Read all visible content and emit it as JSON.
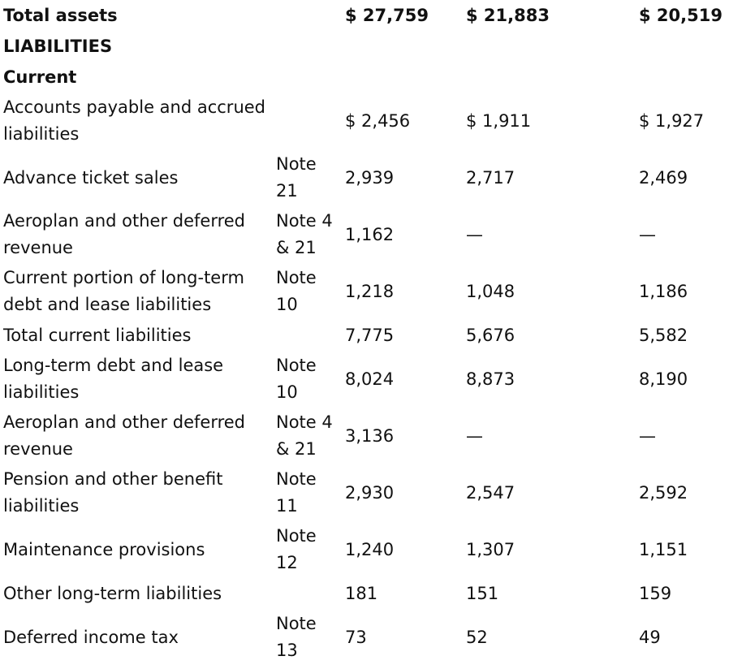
{
  "rows": [
    {
      "label": "Total assets",
      "note": "",
      "v1": "$ 27,759",
      "v2": "$ 21,883",
      "v3": "$ 20,519"
    },
    {
      "label": "LIABILITIES",
      "note": "",
      "v1": "",
      "v2": "",
      "v3": ""
    },
    {
      "label": "Current",
      "note": "",
      "v1": "",
      "v2": "",
      "v3": ""
    },
    {
      "label": "Accounts payable and accrued liabilities",
      "note": "",
      "v1": "$ 2,456",
      "v2": "$ 1,911",
      "v3": "$  1,927"
    },
    {
      "label": "Advance ticket sales",
      "note": "Note 21",
      "v1": "2,939",
      "v2": "2,717",
      "v3": "2,469"
    },
    {
      "label": "Aeroplan and other deferred revenue",
      "note": "Note 4 & 21",
      "v1": "1,162",
      "v2": "—",
      "v3": "—"
    },
    {
      "label": "Current portion of long-term debt and lease liabilities",
      "note": "Note 10",
      "v1": "1,218",
      "v2": "1,048",
      "v3": "1,186"
    },
    {
      "label": "Total current liabilities",
      "note": "",
      "v1": "7,775",
      "v2": "5,676",
      "v3": "5,582"
    },
    {
      "label": "Long-term debt and lease liabilities",
      "note": "Note 10",
      "v1": "8,024",
      "v2": "8,873",
      "v3": "8,190"
    },
    {
      "label": "Aeroplan and other deferred revenue",
      "note": "Note 4 & 21",
      "v1": "3,136",
      "v2": "—",
      "v3": "—"
    },
    {
      "label": "Pension and other benefit liabilities",
      "note": "Note 11",
      "v1": "2,930",
      "v2": "2,547",
      "v3": "2,592"
    },
    {
      "label": "Maintenance provisions",
      "note": "Note 12",
      "v1": "1,240",
      "v2": "1,307",
      "v3": "1,151"
    },
    {
      "label": "Other long-term liabilities",
      "note": "",
      "v1": "181",
      "v2": "151",
      "v3": "159"
    },
    {
      "label": "Deferred income tax",
      "note": "Note 13",
      "v1": "73",
      "v2": "52",
      "v3": "49"
    }
  ]
}
